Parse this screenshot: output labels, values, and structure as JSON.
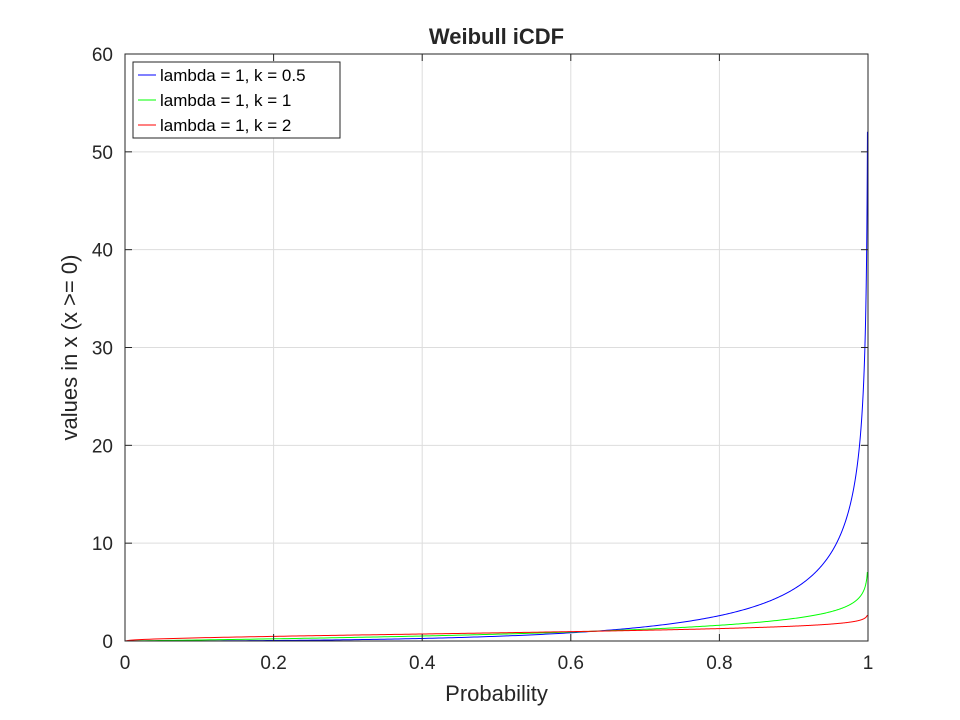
{
  "chart_data": {
    "type": "line",
    "title": "Weibull iCDF",
    "xlabel": "Probability",
    "ylabel": "values in x (x >= 0)",
    "xlim": [
      0,
      1
    ],
    "ylim": [
      0,
      60
    ],
    "xticks": [
      "0",
      "0.2",
      "0.4",
      "0.6",
      "0.8",
      "1"
    ],
    "xtick_values": [
      0,
      0.2,
      0.4,
      0.6,
      0.8,
      1
    ],
    "yticks": [
      "0",
      "10",
      "20",
      "30",
      "40",
      "50",
      "60"
    ],
    "ytick_values": [
      0,
      10,
      20,
      30,
      40,
      50,
      60
    ],
    "grid": true,
    "legend_position": "top-left",
    "series": [
      {
        "name": "lambda = 1, k = 0.5",
        "lambda": 1,
        "k": 0.5,
        "color": "#0000ff",
        "x_max": 0.99999,
        "y_max": 52
      },
      {
        "name": "lambda = 1, k = 1",
        "lambda": 1,
        "k": 1,
        "color": "#00ff00",
        "x_max": 0.99999,
        "y_max": 7
      },
      {
        "name": "lambda = 1, k = 2",
        "lambda": 1,
        "k": 2,
        "color": "#ff0000",
        "x_max": 0.99999,
        "y_max": 2.6
      }
    ]
  }
}
